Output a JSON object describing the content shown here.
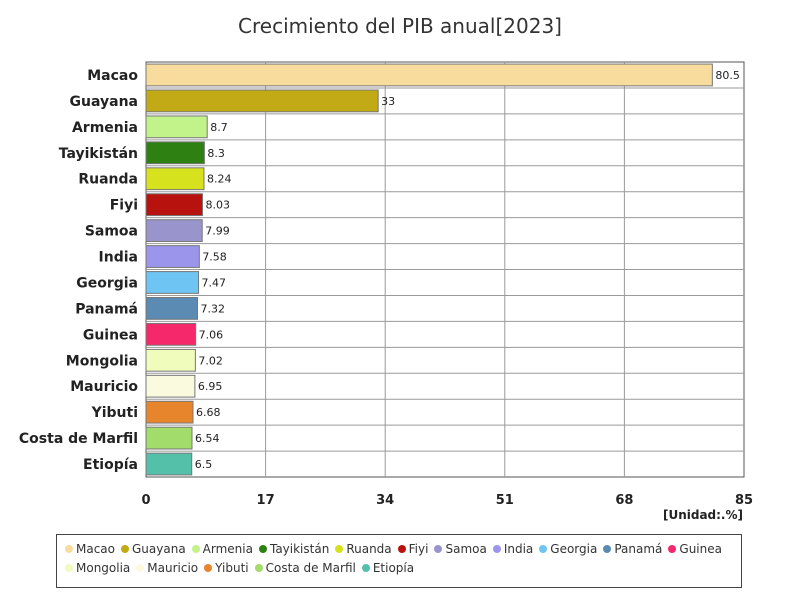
{
  "chart_data": {
    "type": "bar",
    "orientation": "horizontal",
    "title": "Crecimiento del PIB anual[2023]",
    "unit_label": "[Unidad:.%]",
    "xlim": [
      0,
      85
    ],
    "xticks": [
      0,
      17,
      34,
      51,
      68,
      85
    ],
    "grid": true,
    "legend_position": "bottom",
    "categories": [
      "Macao",
      "Guayana",
      "Armenia",
      "Tayikistán",
      "Ruanda",
      "Fiyi",
      "Samoa",
      "India",
      "Georgia",
      "Panamá",
      "Guinea",
      "Mongolia",
      "Mauricio",
      "Yibuti",
      "Costa de Marfil",
      "Etiopía"
    ],
    "values": [
      80.5,
      33,
      8.7,
      8.3,
      8.24,
      8.03,
      7.99,
      7.58,
      7.47,
      7.32,
      7.06,
      7.02,
      6.95,
      6.68,
      6.54,
      6.5
    ],
    "value_labels": [
      "80.5",
      "33",
      "8.7",
      "8.3",
      "8.24",
      "8.03",
      "7.99",
      "7.58",
      "7.47",
      "7.32",
      "7.06",
      "7.02",
      "6.95",
      "6.68",
      "6.54",
      "6.5"
    ],
    "colors": [
      "#f7dc9e",
      "#c2a916",
      "#c2f28a",
      "#2e8012",
      "#d6e21e",
      "#b8120f",
      "#9a94cc",
      "#9b95ec",
      "#6ec4f2",
      "#5b8ab2",
      "#f4286a",
      "#effcbb",
      "#fafadf",
      "#e6852c",
      "#a2dc6a",
      "#55c0aa"
    ]
  }
}
